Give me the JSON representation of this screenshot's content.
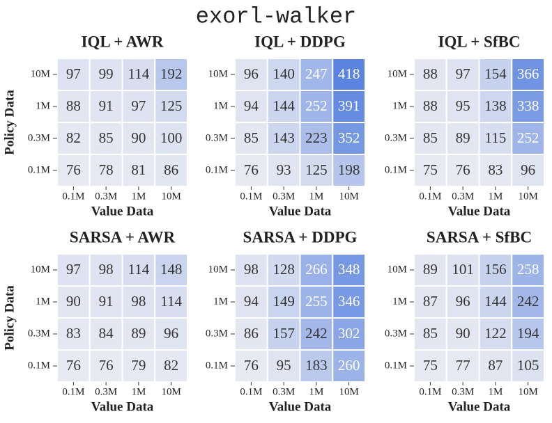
{
  "title": "exorl-walker",
  "chart_data": [
    {
      "type": "heatmap",
      "title": "IQL + AWR",
      "xlabel": "Value Data",
      "ylabel": "Policy Data",
      "x_categories": [
        "0.1M",
        "0.3M",
        "1M",
        "10M"
      ],
      "y_categories": [
        "10M",
        "1M",
        "0.3M",
        "0.1M"
      ],
      "values": [
        [
          97,
          99,
          114,
          192
        ],
        [
          88,
          91,
          97,
          125
        ],
        [
          82,
          85,
          90,
          100
        ],
        [
          76,
          78,
          81,
          86
        ]
      ],
      "colormap": [
        "#e8eaf2",
        "#5a84e0"
      ]
    },
    {
      "type": "heatmap",
      "title": "IQL + DDPG",
      "xlabel": "Value Data",
      "x_categories": [
        "0.1M",
        "0.3M",
        "1M",
        "10M"
      ],
      "y_categories": [
        "10M",
        "1M",
        "0.3M",
        "0.1M"
      ],
      "values": [
        [
          96,
          140,
          247,
          418
        ],
        [
          94,
          144,
          252,
          391
        ],
        [
          85,
          143,
          223,
          352
        ],
        [
          76,
          93,
          125,
          198
        ]
      ],
      "colormap": [
        "#e8eaf2",
        "#5a84e0"
      ]
    },
    {
      "type": "heatmap",
      "title": "IQL + SfBC",
      "xlabel": "Value Data",
      "x_categories": [
        "0.1M",
        "0.3M",
        "1M",
        "10M"
      ],
      "y_categories": [
        "10M",
        "1M",
        "0.3M",
        "0.1M"
      ],
      "values": [
        [
          88,
          97,
          154,
          366
        ],
        [
          88,
          95,
          138,
          338
        ],
        [
          85,
          89,
          115,
          252
        ],
        [
          75,
          76,
          83,
          96
        ]
      ],
      "colormap": [
        "#e8eaf2",
        "#5a84e0"
      ]
    },
    {
      "type": "heatmap",
      "title": "SARSA + AWR",
      "xlabel": "Value Data",
      "ylabel": "Policy Data",
      "x_categories": [
        "0.1M",
        "0.3M",
        "1M",
        "10M"
      ],
      "y_categories": [
        "10M",
        "1M",
        "0.3M",
        "0.1M"
      ],
      "values": [
        [
          97,
          98,
          114,
          148
        ],
        [
          90,
          91,
          98,
          114
        ],
        [
          83,
          84,
          89,
          96
        ],
        [
          76,
          76,
          79,
          82
        ]
      ],
      "colormap": [
        "#e8eaf2",
        "#5a84e0"
      ]
    },
    {
      "type": "heatmap",
      "title": "SARSA + DDPG",
      "xlabel": "Value Data",
      "x_categories": [
        "0.1M",
        "0.3M",
        "1M",
        "10M"
      ],
      "y_categories": [
        "10M",
        "1M",
        "0.3M",
        "0.1M"
      ],
      "values": [
        [
          98,
          128,
          266,
          348
        ],
        [
          94,
          149,
          255,
          346
        ],
        [
          86,
          157,
          242,
          302
        ],
        [
          76,
          95,
          183,
          260
        ]
      ],
      "colormap": [
        "#e8eaf2",
        "#5a84e0"
      ]
    },
    {
      "type": "heatmap",
      "title": "SARSA + SfBC",
      "xlabel": "Value Data",
      "x_categories": [
        "0.1M",
        "0.3M",
        "1M",
        "10M"
      ],
      "y_categories": [
        "10M",
        "1M",
        "0.3M",
        "0.1M"
      ],
      "values": [
        [
          89,
          101,
          156,
          258
        ],
        [
          87,
          96,
          144,
          242
        ],
        [
          85,
          90,
          122,
          194
        ],
        [
          75,
          77,
          87,
          105
        ]
      ],
      "colormap": [
        "#e8eaf2",
        "#5a84e0"
      ]
    }
  ]
}
